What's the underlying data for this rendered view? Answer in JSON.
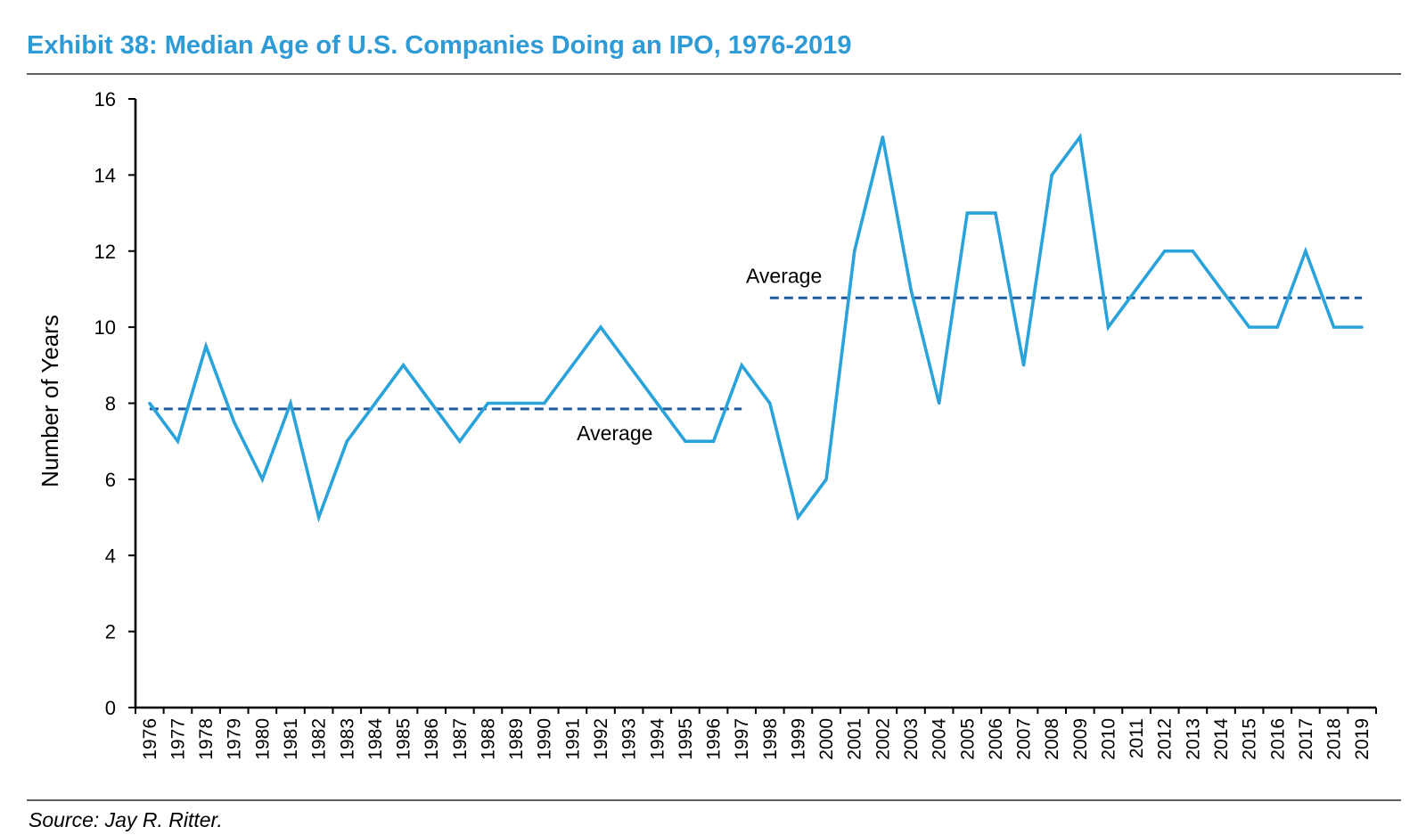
{
  "chart_data": {
    "type": "line",
    "title": "Exhibit 38: Median Age of U.S. Companies Doing an IPO, 1976-2019",
    "xlabel": "",
    "ylabel": "Number of Years",
    "ylim": [
      0,
      16
    ],
    "yticks": [
      "0",
      "2",
      "4",
      "6",
      "8",
      "10",
      "12",
      "14",
      "16"
    ],
    "grid": false,
    "legend": "none",
    "x": [
      "1976",
      "1977",
      "1978",
      "1979",
      "1980",
      "1981",
      "1982",
      "1983",
      "1984",
      "1985",
      "1986",
      "1987",
      "1988",
      "1989",
      "1990",
      "1991",
      "1992",
      "1993",
      "1994",
      "1995",
      "1996",
      "1997",
      "1998",
      "1999",
      "2000",
      "2001",
      "2002",
      "2003",
      "2004",
      "2005",
      "2006",
      "2007",
      "2008",
      "2009",
      "2010",
      "2011",
      "2012",
      "2013",
      "2014",
      "2015",
      "2016",
      "2017",
      "2018",
      "2019"
    ],
    "series": [
      {
        "color": "#29A3DA",
        "values": [
          8,
          7,
          9.5,
          7.5,
          6,
          8,
          5,
          7,
          8,
          9,
          8,
          7,
          8,
          8,
          8,
          9,
          10,
          9,
          8,
          7,
          7,
          9,
          8,
          5,
          6,
          12,
          15,
          11,
          8,
          13,
          13,
          9,
          14,
          15,
          10,
          11,
          12,
          12,
          11,
          10,
          10,
          12,
          10,
          10
        ]
      }
    ],
    "averages": [
      {
        "label": "Average",
        "value": 7.85,
        "from": "1976",
        "to": "1997",
        "label_position": "below",
        "color": "#1F5A99"
      },
      {
        "label": "Average",
        "value": 10.77,
        "from": "1998",
        "to": "2019",
        "label_position": "above",
        "color": "#1F5A99"
      }
    ],
    "source": "Source: Jay R. Ritter."
  }
}
